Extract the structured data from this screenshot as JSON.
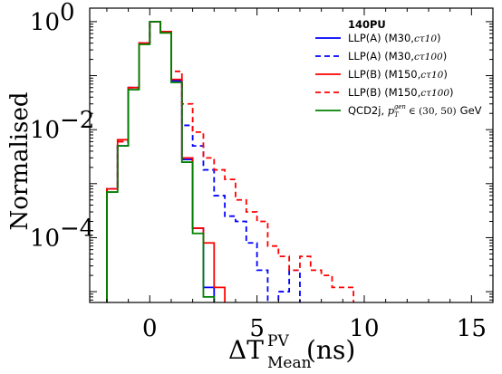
{
  "chart_data": {
    "type": "line",
    "subtype": "step-histogram",
    "ylabel": "Normalised",
    "xlabel": {
      "base": "ΔT",
      "sup": "PV",
      "sub": "Mean",
      "unit": "(ns)"
    },
    "legend_title": "140PU",
    "legend_position": "top-right",
    "xlim": [
      -2.8,
      16
    ],
    "ylim_log10": [
      -5.2,
      0.25
    ],
    "log_y": true,
    "grid": false,
    "x_ticks": [
      {
        "v": 0,
        "label": "0"
      },
      {
        "v": 5,
        "label": "5"
      },
      {
        "v": 10,
        "label": "10"
      },
      {
        "v": 15,
        "label": "15"
      }
    ],
    "y_ticks": [
      {
        "v": 0,
        "base": "10",
        "exp": "0"
      },
      {
        "v": -2,
        "base": "10",
        "exp": "−2"
      },
      {
        "v": -4,
        "base": "10",
        "exp": "−4"
      }
    ],
    "series": [
      {
        "name": "LLP(A) (M30,cτ10)",
        "color": "#0000ff",
        "dash": false,
        "edges": [
          -2.0,
          -1.5,
          -1.0,
          -0.5,
          0.0,
          0.5,
          1.0,
          1.5,
          2.0,
          2.5,
          3.0
        ],
        "values": [
          0.0008,
          0.005,
          0.06,
          0.4,
          1.0,
          0.65,
          0.08,
          0.0028,
          0.00015,
          1.2e-05
        ]
      },
      {
        "name": "LLP(A) (M30,cτ100)",
        "color": "#0000ff",
        "dash": true,
        "edges": [
          -2.0,
          -1.5,
          -1.0,
          -0.5,
          0.0,
          0.5,
          1.0,
          1.5,
          2.0,
          2.5,
          3.0,
          3.5,
          4.0,
          4.5,
          5.0,
          5.5,
          6.0,
          6.5,
          7.0,
          7.5,
          8.0
        ],
        "values": [
          0.0008,
          0.006,
          0.06,
          0.4,
          1.0,
          0.63,
          0.08,
          0.012,
          0.005,
          0.0018,
          0.0006,
          0.00025,
          0.0002,
          8e-05,
          2.5e-05,
          3e-06,
          1e-05,
          2.5e-05,
          6e-06,
          6e-06
        ]
      },
      {
        "name": "LLP(B) (M150,cτ10)",
        "color": "#ff0000",
        "dash": false,
        "edges": [
          -2.0,
          -1.5,
          -1.0,
          -0.5,
          0.0,
          0.5,
          1.0,
          1.5,
          2.0,
          2.5,
          3.0,
          3.5
        ],
        "values": [
          0.0008,
          0.0065,
          0.06,
          0.4,
          1.0,
          0.65,
          0.085,
          0.003,
          0.00015,
          8e-05,
          1.2e-05
        ]
      },
      {
        "name": "LLP(B) (M150,cτ100)",
        "color": "#ff0000",
        "dash": true,
        "edges": [
          -2.0,
          -1.5,
          -1.0,
          -0.5,
          0.0,
          0.5,
          1.0,
          1.5,
          2.0,
          2.5,
          3.0,
          3.5,
          4.0,
          4.5,
          5.0,
          5.5,
          6.0,
          6.5,
          7.0,
          7.5,
          8.0,
          8.5,
          9.0,
          9.5,
          10.0,
          10.5,
          11.0,
          11.5,
          12.0
        ],
        "values": [
          0.0008,
          0.006,
          0.06,
          0.4,
          1.0,
          0.65,
          0.12,
          0.03,
          0.009,
          0.003,
          0.0018,
          0.0012,
          0.0005,
          0.0003,
          0.0002,
          7e-05,
          4.5e-05,
          2.5e-05,
          4.5e-05,
          2.5e-05,
          2e-05,
          1.2e-05,
          1.2e-05,
          1e-06,
          1e-06,
          1e-06,
          6e-06,
          1e-06,
          6e-06
        ]
      },
      {
        "name": "QCD2j, p_T^gen ∈ (30, 50) GeV",
        "color": "#008000",
        "dash": false,
        "edges": [
          -2.0,
          -1.5,
          -1.0,
          -0.5,
          0.0,
          0.5,
          1.0,
          1.5,
          2.0,
          2.5,
          3.0
        ],
        "values": [
          0.0007,
          0.005,
          0.055,
          0.38,
          1.0,
          0.62,
          0.075,
          0.0025,
          0.00012,
          8e-06
        ]
      }
    ]
  },
  "legend_labels": [
    {
      "text": "LLP(A) (M30,",
      "ctau": "cτ10",
      "tail": ")"
    },
    {
      "text": "LLP(A) (M30,",
      "ctau": "cτ100",
      "tail": ")"
    },
    {
      "text": "LLP(B) (M150,",
      "ctau": "cτ10",
      "tail": ")"
    },
    {
      "text": "LLP(B) (M150,",
      "ctau": "cτ100",
      "tail": ")"
    },
    {
      "text": "QCD2j, ",
      "pt": "p",
      "pt_sub": "T",
      "pt_sup": "gen",
      "range": "∈ (30, 50)",
      "unit": "GeV"
    }
  ]
}
